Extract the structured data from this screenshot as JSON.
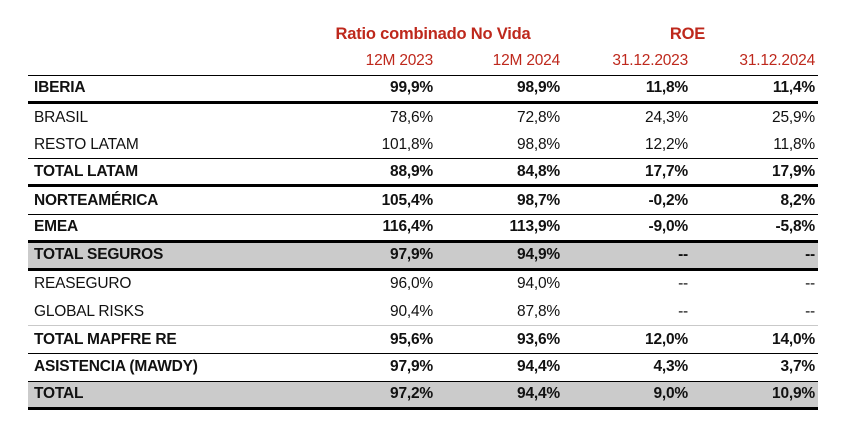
{
  "colors": {
    "header_red": "#be281c",
    "shaded_row_bg": "#cbcbcb",
    "border_black": "#000000",
    "faint_divider": "#c9c9c9"
  },
  "chart_data": {
    "type": "table",
    "column_groups": [
      {
        "label": "Ratio combinado No Vida",
        "span": 2
      },
      {
        "label": "ROE",
        "span": 2
      }
    ],
    "columns": [
      "12M 2023",
      "12M 2024",
      "31.12.2023",
      "31.12.2024"
    ],
    "rows": [
      {
        "label": "IBERIA",
        "values": [
          "99,9%",
          "98,9%",
          "11,8%",
          "11,4%"
        ],
        "emphasis": true,
        "shaded": false,
        "divider": "thick"
      },
      {
        "label": "BRASIL",
        "values": [
          "78,6%",
          "72,8%",
          "24,3%",
          "25,9%"
        ],
        "emphasis": false,
        "shaded": false,
        "divider": "none"
      },
      {
        "label": "RESTO LATAM",
        "values": [
          "101,8%",
          "98,8%",
          "12,2%",
          "11,8%"
        ],
        "emphasis": false,
        "shaded": false,
        "divider": "thin"
      },
      {
        "label": "TOTAL LATAM",
        "values": [
          "88,9%",
          "84,8%",
          "17,7%",
          "17,9%"
        ],
        "emphasis": true,
        "shaded": false,
        "divider": "thick"
      },
      {
        "label": "NORTEAMÉRICA",
        "values": [
          "105,4%",
          "98,7%",
          "-0,2%",
          "8,2%"
        ],
        "emphasis": true,
        "shaded": false,
        "divider": "thin"
      },
      {
        "label": "EMEA",
        "values": [
          "116,4%",
          "113,9%",
          "-9,0%",
          "-5,8%"
        ],
        "emphasis": true,
        "shaded": false,
        "divider": "thick"
      },
      {
        "label": "TOTAL SEGUROS",
        "values": [
          "97,9%",
          "94,9%",
          "--",
          "--"
        ],
        "emphasis": true,
        "shaded": true,
        "divider": "thick"
      },
      {
        "label": "REASEGURO",
        "values": [
          "96,0%",
          "94,0%",
          "--",
          "--"
        ],
        "emphasis": false,
        "shaded": false,
        "divider": "none"
      },
      {
        "label": "GLOBAL RISKS",
        "values": [
          "90,4%",
          "87,8%",
          "--",
          "--"
        ],
        "emphasis": false,
        "shaded": false,
        "divider": "faint"
      },
      {
        "label": "TOTAL MAPFRE RE",
        "values": [
          "95,6%",
          "93,6%",
          "12,0%",
          "14,0%"
        ],
        "emphasis": true,
        "shaded": false,
        "divider": "thin"
      },
      {
        "label": "ASISTENCIA (MAWDY)",
        "values": [
          "97,9%",
          "94,4%",
          "4,3%",
          "3,7%"
        ],
        "emphasis": true,
        "shaded": false,
        "divider": "thin"
      },
      {
        "label": "TOTAL",
        "values": [
          "97,2%",
          "94,4%",
          "9,0%",
          "10,9%"
        ],
        "emphasis": true,
        "shaded": true,
        "divider": "thick"
      }
    ]
  }
}
